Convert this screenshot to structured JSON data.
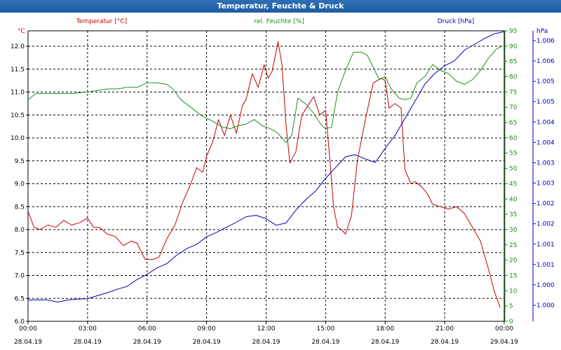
{
  "window": {
    "title": "Temperatur, Feuchte & Druck"
  },
  "colors": {
    "temperature": "#c00000",
    "humidity": "#1e8c1e",
    "pressure": "#0000b4",
    "grid": "#000000",
    "titlebar": "#1d5da3"
  },
  "chart_data": {
    "type": "line",
    "title": "Temperatur, Feuchte & Druck",
    "grid": true,
    "x": {
      "ticks": [
        {
          "time": "00:00",
          "date": "28.04.19"
        },
        {
          "time": "03:00",
          "date": "28.04.19"
        },
        {
          "time": "06:00",
          "date": "28.04.19"
        },
        {
          "time": "09:00",
          "date": "28.04.19"
        },
        {
          "time": "12:00",
          "date": "28.04.19"
        },
        {
          "time": "15:00",
          "date": "28.04.19"
        },
        {
          "time": "18:00",
          "date": "28.04.19"
        },
        {
          "time": "21:00",
          "date": "28.04.19"
        },
        {
          "time": "00:00",
          "date": "29.04.19"
        }
      ],
      "range_hours": [
        0,
        24
      ]
    },
    "axes": {
      "temperature": {
        "label": "Temperatur [°C]",
        "unit_label": "°C",
        "position": "left",
        "range": [
          6.0,
          12.3
        ],
        "ticks": [
          "12.0",
          "11.5",
          "11.0",
          "10.5",
          "10.0",
          "9.5",
          "9.0",
          "8.5",
          "8.0",
          "7.5",
          "7.0",
          "6.5",
          "6.0"
        ]
      },
      "humidity": {
        "label": "rel. Feuchte [%]",
        "unit_label": "%",
        "position": "right",
        "range": [
          0,
          96
        ],
        "ticks": [
          "95",
          "90",
          "85",
          "80",
          "75",
          "70",
          "65",
          "60",
          "55",
          "50",
          "45",
          "40",
          "35",
          "30",
          "25",
          "20",
          "15",
          "10",
          "5",
          "0"
        ]
      },
      "pressure": {
        "label": "Druck [hPa]",
        "unit_label": "hPa",
        "position": "right",
        "range": [
          0.9995,
          1.0063
        ],
        "ticks": [
          "1.006",
          "1.006",
          "1.005",
          "1.005",
          "1.004",
          "1.004",
          "1.003",
          "1.003",
          "1.002",
          "1.002",
          "1.001",
          "1.001",
          "1.000",
          "1.000"
        ]
      }
    },
    "series": [
      {
        "name": "Temperatur [°C]",
        "axis": "temperature",
        "x": [
          0,
          0.3,
          0.6,
          1.0,
          1.4,
          1.8,
          2.2,
          2.6,
          3.0,
          3.3,
          3.6,
          4.0,
          4.4,
          4.8,
          5.2,
          5.5,
          5.9,
          6.3,
          6.6,
          7.0,
          7.4,
          7.8,
          8.2,
          8.5,
          8.8,
          9.0,
          9.3,
          9.6,
          9.9,
          10.2,
          10.5,
          10.8,
          11.0,
          11.3,
          11.6,
          11.9,
          12.1,
          12.3,
          12.6,
          12.8,
          13.0,
          13.2,
          13.5,
          13.8,
          14.1,
          14.4,
          14.7,
          15.0,
          15.2,
          15.4,
          15.6,
          15.8,
          16.0,
          16.3,
          16.6,
          17.0,
          17.4,
          17.8,
          18.0,
          18.2,
          18.5,
          18.8,
          19.0,
          19.3,
          19.5,
          19.8,
          20.1,
          20.4,
          20.8,
          21.2,
          21.6,
          22.0,
          22.4,
          22.8,
          23.2,
          23.5,
          23.8
        ],
        "values": [
          8.4,
          8.05,
          8.0,
          8.1,
          8.05,
          8.2,
          8.1,
          8.15,
          8.25,
          8.05,
          8.05,
          7.9,
          7.85,
          7.65,
          7.75,
          7.7,
          7.35,
          7.35,
          7.4,
          7.8,
          8.1,
          8.6,
          9.0,
          9.35,
          9.25,
          9.6,
          9.9,
          10.4,
          10.05,
          10.5,
          10.1,
          10.7,
          10.85,
          11.4,
          11.1,
          11.6,
          11.3,
          11.45,
          12.1,
          11.6,
          10.3,
          9.45,
          9.7,
          10.5,
          10.7,
          10.9,
          10.5,
          10.6,
          9.6,
          8.5,
          8.05,
          8.0,
          7.9,
          8.3,
          9.5,
          10.4,
          11.2,
          11.3,
          11.25,
          10.65,
          10.75,
          10.65,
          9.3,
          9.0,
          9.05,
          8.95,
          8.8,
          8.55,
          8.5,
          8.45,
          8.5,
          8.35,
          8.05,
          7.75,
          7.15,
          6.65,
          6.3
        ]
      },
      {
        "name": "rel. Feuchte [%]",
        "axis": "humidity",
        "x": [
          0,
          0.4,
          0.8,
          1.5,
          2.2,
          3.0,
          3.5,
          4.0,
          4.5,
          5.0,
          5.5,
          6.0,
          6.5,
          7.0,
          7.3,
          7.7,
          8.2,
          8.8,
          9.3,
          9.8,
          10.2,
          10.6,
          11.0,
          11.4,
          11.8,
          12.2,
          12.5,
          12.8,
          13.0,
          13.3,
          13.6,
          14.0,
          14.4,
          14.8,
          15.0,
          15.3,
          15.6,
          16.0,
          16.4,
          16.8,
          17.1,
          17.4,
          17.7,
          18.0,
          18.3,
          18.7,
          19.0,
          19.3,
          19.6,
          20.0,
          20.4,
          20.8,
          21.2,
          21.6,
          22.0,
          22.4,
          22.8,
          23.2,
          23.6,
          23.9
        ],
        "values": [
          72.5,
          74.5,
          74.5,
          74.5,
          74.5,
          75,
          75.5,
          76,
          76,
          76.5,
          76.5,
          78,
          78,
          77.5,
          76,
          72.5,
          70,
          67,
          65.5,
          63.5,
          63,
          64,
          64.5,
          66,
          64,
          63,
          62,
          60,
          58.5,
          61,
          73,
          71,
          68,
          64,
          63,
          63.5,
          75,
          82,
          88,
          88,
          87,
          83,
          79,
          80,
          76,
          73,
          72.5,
          73,
          78,
          80,
          84,
          82,
          81,
          78.5,
          77.5,
          79,
          82,
          86,
          89,
          90
        ]
      },
      {
        "name": "Druck [hPa]",
        "axis": "pressure",
        "x": [
          0,
          0.5,
          1.0,
          1.5,
          2.0,
          2.5,
          3.0,
          3.5,
          4.0,
          4.5,
          5.0,
          5.5,
          6.0,
          6.5,
          7.0,
          7.5,
          8.0,
          8.5,
          9.0,
          9.5,
          10.0,
          10.5,
          11.0,
          11.5,
          12.0,
          12.5,
          13.0,
          13.5,
          14.0,
          14.5,
          15.0,
          15.5,
          16.0,
          16.5,
          17.0,
          17.5,
          18.0,
          18.5,
          19.0,
          19.5,
          20.0,
          20.5,
          21.0,
          21.5,
          22.0,
          22.5,
          23.0,
          23.5,
          24.0
        ],
        "values": [
          1.0,
          1.0,
          1.0,
          0.99995,
          1.0,
          1.00002,
          1.00003,
          1.0001,
          1.00017,
          1.00025,
          1.00032,
          1.00048,
          1.0006,
          1.00075,
          1.00085,
          1.00105,
          1.0012,
          1.0013,
          1.00148,
          1.00158,
          1.0017,
          1.00182,
          1.00195,
          1.00198,
          1.0019,
          1.00175,
          1.0018,
          1.0021,
          1.00235,
          1.00255,
          1.00285,
          1.0031,
          1.00335,
          1.0034,
          1.0033,
          1.00322,
          1.00355,
          1.00385,
          1.00425,
          1.00465,
          1.00505,
          1.0053,
          1.00548,
          1.0056,
          1.00585,
          1.00598,
          1.00612,
          1.00623,
          1.00628
        ]
      }
    ]
  }
}
